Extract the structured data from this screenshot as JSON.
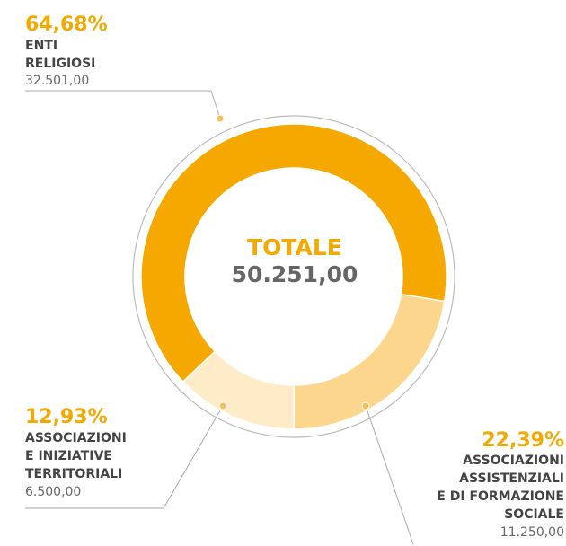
{
  "chart_data": {
    "type": "pie",
    "donut": true,
    "center_title": "TOTALE",
    "total": 50251,
    "total_label": "50.251,00",
    "categories": [
      [
        "ENTI",
        "RELIGIOSI"
      ],
      [
        "ASSOCIAZIONI",
        "ASSISTENZIALI",
        "E DI FORMAZIONE",
        "SOCIALE"
      ],
      [
        "ASSOCIAZIONI",
        "E INIZIATIVE",
        "TERRITORIALI"
      ]
    ],
    "values": [
      32501,
      11250,
      6500
    ],
    "value_labels": [
      "32.501,00",
      "11.250,00",
      "6.500,00"
    ],
    "percents": [
      64.68,
      22.39,
      12.93
    ],
    "percent_labels": [
      "64,68%",
      "22,39%",
      "12,93%"
    ],
    "colors": [
      "#f5a800",
      "#fdd68e",
      "#feebc8"
    ]
  }
}
